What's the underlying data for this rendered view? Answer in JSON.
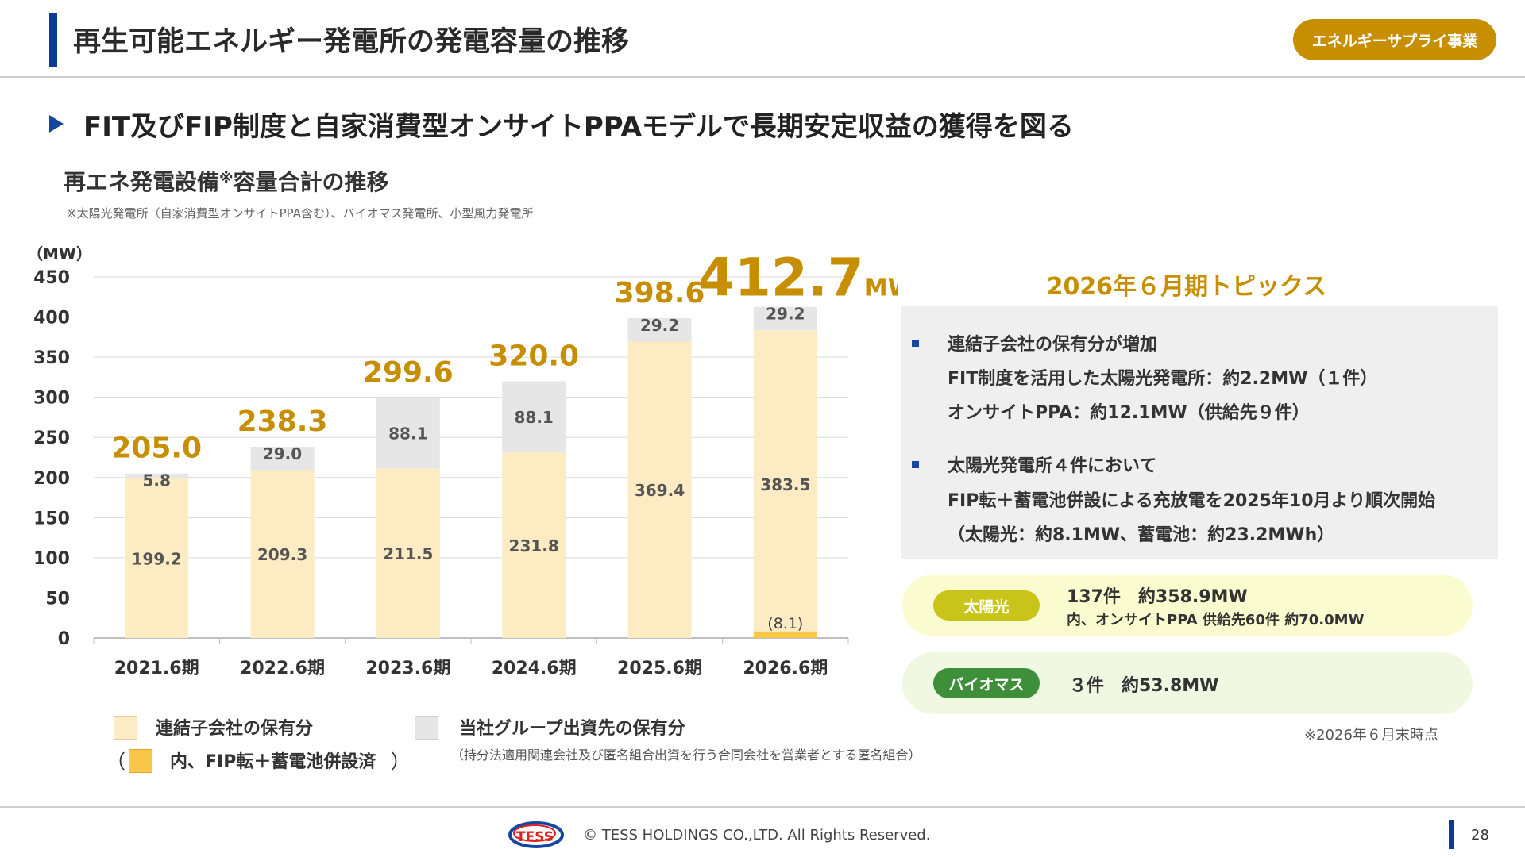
{
  "header": {
    "title": "再生可能エネルギー発電所の発電容量の推移",
    "badge": "エネルギーサプライ事業"
  },
  "subtitle": "FIT及びFIP制度と自家消費型オンサイトPPAモデルで長期安定収益の獲得を図る",
  "chart_section": {
    "title": "再エネ発電設備",
    "title_mark": "※",
    "title_suffix": "容量合計の推移",
    "footnote": "※太陽光発電所（自家消費型オンサイトPPA含む）、バイオマス発電所、小型風力発電所"
  },
  "chart_data": {
    "type": "bar",
    "stacked": true,
    "ylabel": "（MW）",
    "ylim": [
      0,
      450
    ],
    "yticks": [
      0,
      50,
      100,
      150,
      200,
      250,
      300,
      350,
      400,
      450
    ],
    "grid": true,
    "categories": [
      "2021.6期",
      "2022.6期",
      "2023.6期",
      "2024.6期",
      "2025.6期",
      "2026.6期"
    ],
    "series": [
      {
        "name": "連結子会社の保有分",
        "values": [
          199.2,
          209.3,
          211.5,
          231.8,
          369.4,
          383.5
        ],
        "color": "#fdebc4"
      },
      {
        "name": "当社グループ出資先の保有分",
        "values": [
          5.8,
          29.0,
          88.1,
          88.1,
          29.2,
          29.2
        ],
        "color": "#e6e6e6"
      }
    ],
    "fip_series": {
      "name": "内、FIP転＋蓄電池併設済",
      "values": [
        null,
        null,
        null,
        null,
        null,
        8.1
      ],
      "labels": [
        "",
        "",
        "",
        "",
        "",
        "(8.1)"
      ],
      "color": "#f9c84a"
    },
    "total_labels": [
      "205.0",
      "238.3",
      "299.6",
      "320.0",
      "398.6",
      "412.7"
    ],
    "total_unit_last": "MW",
    "total_color": "#c78f00"
  },
  "legend": {
    "consolidated": "連結子会社の保有分",
    "group": "当社グループ出資先の保有分",
    "fip_open": "（",
    "fip": "内、FIP転＋蓄電池併設済",
    "fip_close": "）",
    "group_note": "（持分法適用関連会社及び匿名組合出資を行う合同会社を営業者とする匿名組合）"
  },
  "topics": {
    "title": "2026年６月期トピックス",
    "items": [
      {
        "lines": [
          "連結子会社の保有分が増加",
          "FIT制度を活用した太陽光発電所：約2.2MW（１件）",
          "オンサイトPPA：約12.1MW（供給先９件）"
        ]
      },
      {
        "lines": [
          "太陽光発電所４件において",
          "FIP転＋蓄電池併設による充放電を2025年10月より順次開始",
          "（太陽光：約8.1MW、蓄電池：約23.2MWh）"
        ]
      }
    ]
  },
  "summary": {
    "solar": {
      "tag": "太陽光",
      "line1": "137件　約358.9MW",
      "line2": "内、オンサイトPPA 供給先60件 約70.0MW",
      "tag_color": "#c9c41a",
      "bg_color": "#fafbcf"
    },
    "biomass": {
      "tag": "バイオマス",
      "line1": "３件　約53.8MW",
      "tag_color": "#3e8f3a",
      "bg_color": "#f0f8e2"
    },
    "as_of": "※2026年６月末時点"
  },
  "footer": {
    "logo_text": "TESS",
    "copyright": "© TESS HOLDINGS CO.,LTD. All Rights Reserved.",
    "page": "28"
  }
}
